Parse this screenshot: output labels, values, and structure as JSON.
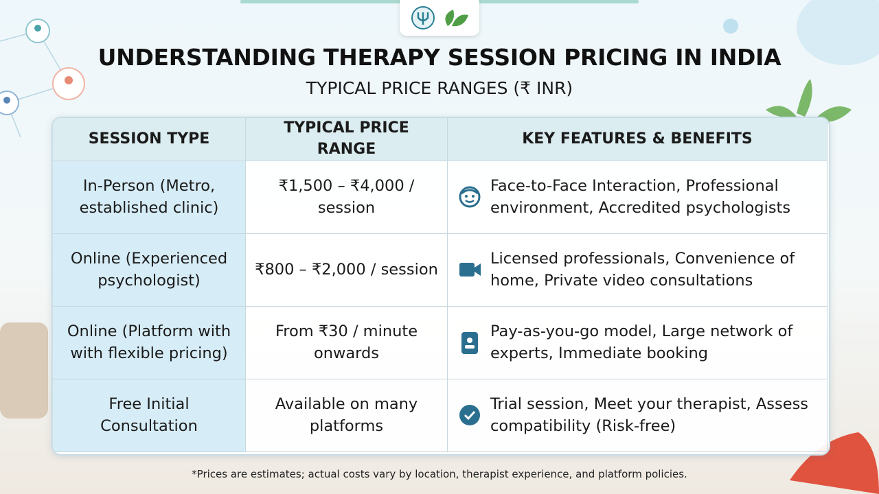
{
  "header": {
    "title": "UNDERSTANDING THERAPY SESSION PRICING IN INDIA",
    "subtitle": "TYPICAL PRICE RANGES (₹ INR)"
  },
  "table": {
    "headers": [
      "SESSION TYPE",
      "TYPICAL PRICE RANGE",
      "KEY FEATURES & BENEFITS"
    ],
    "rows": [
      [
        "In-Person (Metro, established clinic)",
        "₹1,500 – ₹4,000 / session",
        "Face-to-Face Interaction, Professional environment, Accredited psychologists"
      ],
      [
        "Online (Experienced psychologist)",
        "₹800 – ₹2,000 / session",
        "Licensed professionals, Convenience of home, Private video consultations"
      ],
      [
        "Online (Platform with with flexible pricing)",
        "From ₹30 / minute onwards",
        "Pay-as-you-go model, Large network of experts, Immediate booking"
      ],
      [
        "Free Initial Consultation",
        "Available on many platforms",
        "Trial session, Meet your therapist, Assess compatibility (Risk-free)"
      ]
    ]
  },
  "footnote": "*Prices are estimates; actual costs vary by location, therapist experience, and platform policies."
}
